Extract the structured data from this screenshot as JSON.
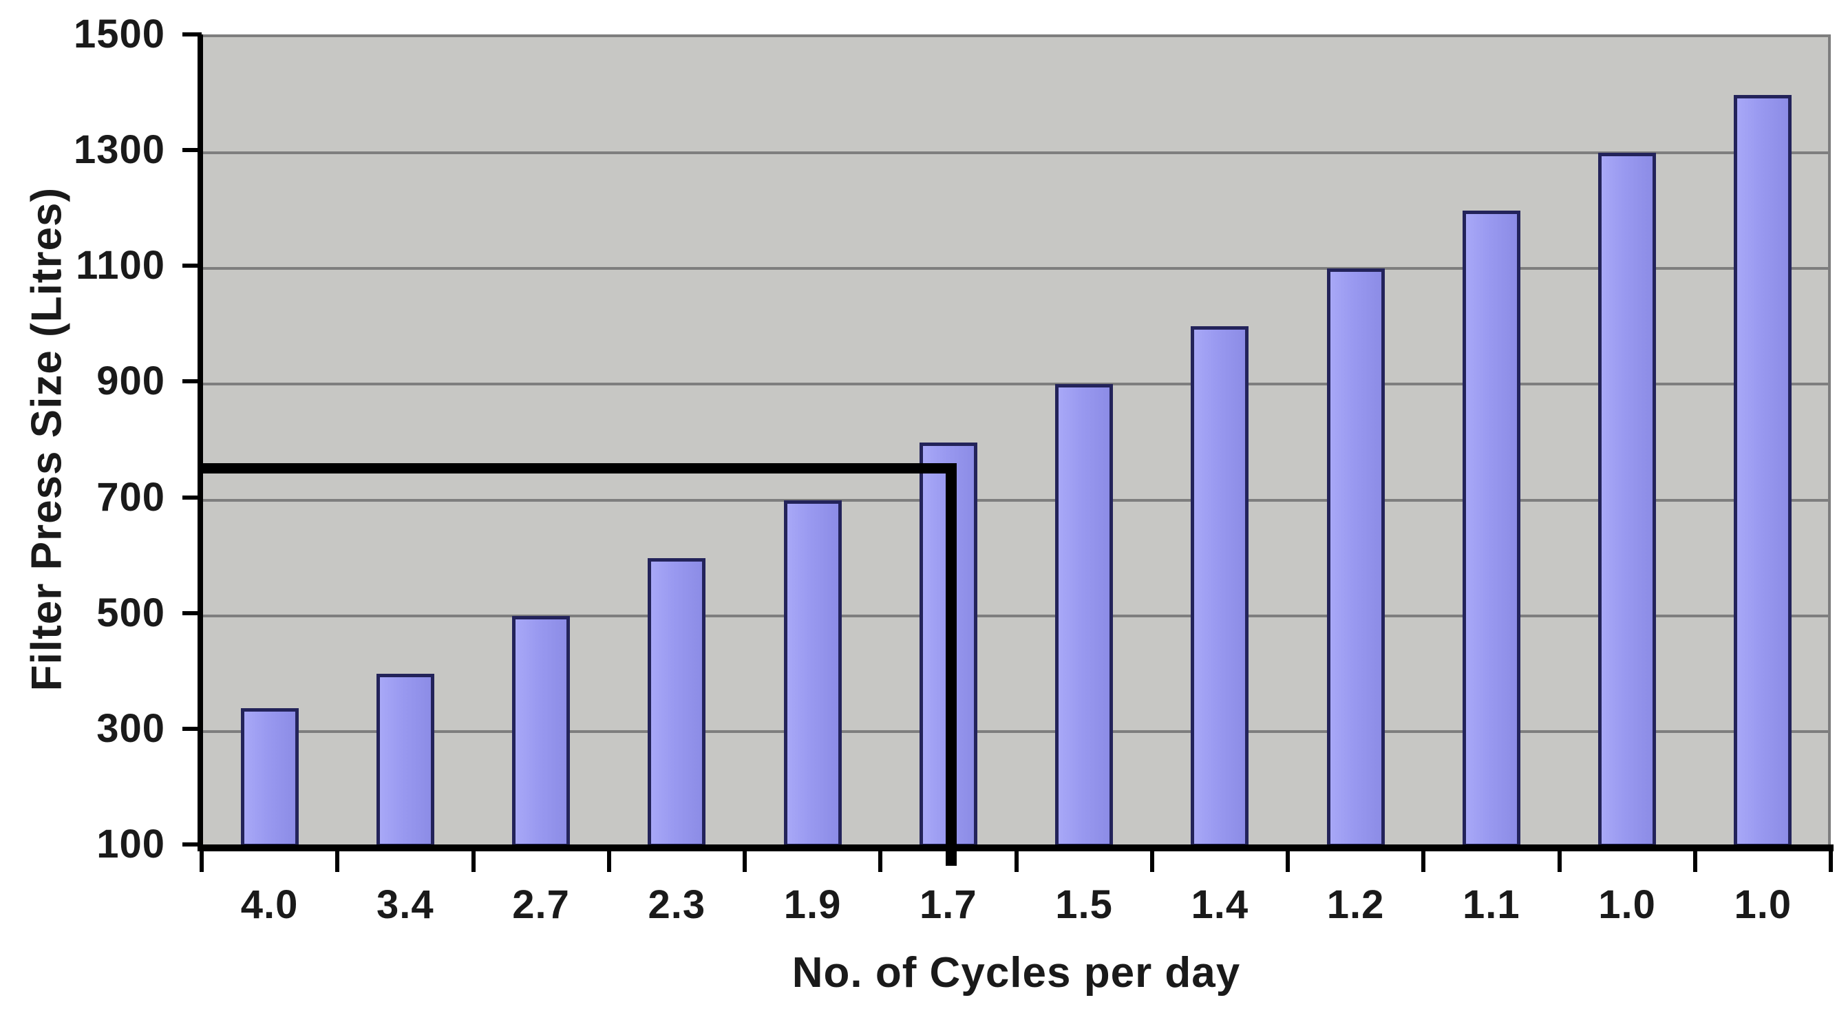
{
  "chart_data": {
    "type": "bar",
    "title": "",
    "xlabel": "No. of Cycles per day",
    "ylabel": "Filter Press Size (Litres)",
    "categories": [
      "4.0",
      "3.4",
      "2.7",
      "2.3",
      "1.9",
      "1.7",
      "1.5",
      "1.4",
      "1.2",
      "1.1",
      "1.0",
      "1.0"
    ],
    "values": [
      340,
      400,
      500,
      600,
      700,
      800,
      900,
      1000,
      1100,
      1200,
      1300,
      1400
    ],
    "ylim": [
      100,
      1500
    ],
    "yticks": [
      100,
      300,
      500,
      700,
      900,
      1100,
      1300,
      1500
    ],
    "grid": "horizontal-only",
    "legend": "none",
    "plot_background": "gray",
    "annotation": {
      "description": "thick black crosshair reading line at about 750 litres dropping down at the 1.7 cycles-per-day bar",
      "y_value": 750,
      "category": "1.7",
      "category_index": 5
    },
    "colors": {
      "bar_fill": "#9999F0",
      "bar_fill_light": "#A8A8F7",
      "bar_fill_dark": "#8C8CE6",
      "bar_border": "#23235A",
      "plot_background": "#C7C7C4",
      "gridline": "#7E7E7E",
      "axis": "#000000",
      "annotation_line": "#000000",
      "text": "#1A1A1A",
      "page_background": "#FFFFFF"
    }
  }
}
